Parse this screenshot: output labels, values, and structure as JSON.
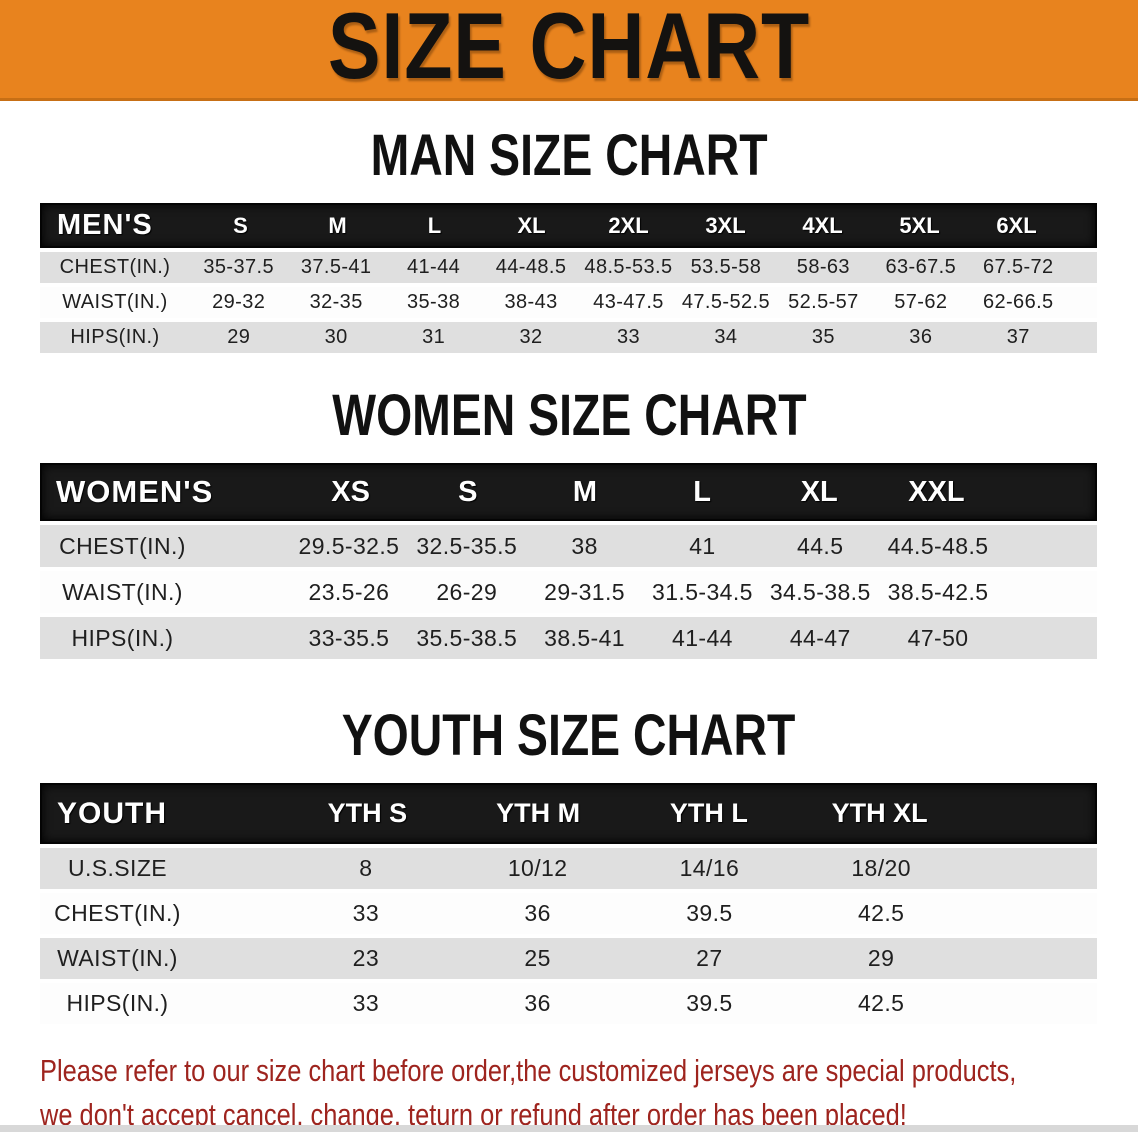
{
  "banner": {
    "title": "SIZE CHART",
    "bg_color": "#e8831e"
  },
  "colors": {
    "table_header_bar": "#191919",
    "row_stripe_gray": "#dfdfdf",
    "footer_text": "#9e241e"
  },
  "sections": [
    {
      "heading": "MAN SIZE CHART",
      "table": {
        "columns": [
          "MEN'S",
          "S",
          "M",
          "L",
          "XL",
          "2XL",
          "3XL",
          "4XL",
          "5XL",
          "6XL"
        ],
        "rows": [
          {
            "label": "CHEST(IN.)",
            "values": [
              "35-37.5",
              "37.5-41",
              "41-44",
              "44-48.5",
              "48.5-53.5",
              "53.5-58",
              "58-63",
              "63-67.5",
              "67.5-72"
            ]
          },
          {
            "label": "WAIST(IN.)",
            "values": [
              "29-32",
              "32-35",
              "35-38",
              "38-43",
              "43-47.5",
              "47.5-52.5",
              "52.5-57",
              "57-62",
              "62-66.5"
            ]
          },
          {
            "label": "HIPS(IN.)",
            "values": [
              "29",
              "30",
              "31",
              "32",
              "33",
              "34",
              "35",
              "36",
              "37"
            ]
          }
        ]
      }
    },
    {
      "heading": "WOMEN SIZE CHART",
      "table": {
        "columns": [
          "WOMEN'S",
          "XS",
          "S",
          "M",
          "L",
          "XL",
          "XXL"
        ],
        "rows": [
          {
            "label": "CHEST(IN.)",
            "values": [
              "29.5-32.5",
              "32.5-35.5",
              "38",
              "41",
              "44.5",
              "44.5-48.5"
            ]
          },
          {
            "label": "WAIST(IN.)",
            "values": [
              "23.5-26",
              "26-29",
              "29-31.5",
              "31.5-34.5",
              "34.5-38.5",
              "38.5-42.5"
            ]
          },
          {
            "label": "HIPS(IN.)",
            "values": [
              "33-35.5",
              "35.5-38.5",
              "38.5-41",
              "41-44",
              "44-47",
              "47-50"
            ]
          }
        ]
      }
    },
    {
      "heading": "YOUTH SIZE CHART",
      "table": {
        "columns": [
          "YOUTH",
          "YTH S",
          "YTH M",
          "YTH L",
          "YTH XL"
        ],
        "rows": [
          {
            "label": "U.S.SIZE",
            "values": [
              "8",
              "10/12",
              "14/16",
              "18/20"
            ]
          },
          {
            "label": "CHEST(IN.)",
            "values": [
              "33",
              "36",
              "39.5",
              "42.5"
            ]
          },
          {
            "label": "WAIST(IN.)",
            "values": [
              "23",
              "25",
              "27",
              "29"
            ]
          },
          {
            "label": "HIPS(IN.)",
            "values": [
              "33",
              "36",
              "39.5",
              "42.5"
            ]
          }
        ]
      }
    }
  ],
  "footer": {
    "lines": [
      "Please refer to our size chart before order,the customized jerseys are special products,",
      "we don't accept cancel, change, teturn or refund after order has been placed!"
    ]
  }
}
